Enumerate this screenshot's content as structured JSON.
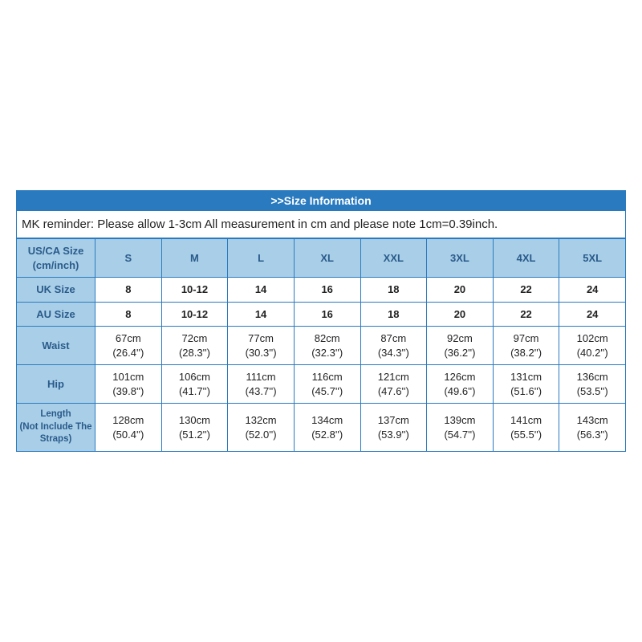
{
  "title": ">>Size Information",
  "reminder": "MK reminder: Please allow 1-3cm All measurement in cm and please note 1cm=0.39inch.",
  "colors": {
    "header_bg": "#2a7abf",
    "header_text": "#ffffff",
    "row_head_bg": "#a9cfe8",
    "row_head_text": "#2a5a8a",
    "border": "#2a7abf",
    "cell_bg": "#ffffff",
    "text": "#222222"
  },
  "columns_header_label": "US/CA Size (cm/inch)",
  "sizes": [
    "S",
    "M",
    "L",
    "XL",
    "XXL",
    "3XL",
    "4XL",
    "5XL"
  ],
  "uk_label": "UK Size",
  "uk": [
    "8",
    "10-12",
    "14",
    "16",
    "18",
    "20",
    "22",
    "24"
  ],
  "au_label": "AU Size",
  "au": [
    "8",
    "10-12",
    "14",
    "16",
    "18",
    "20",
    "22",
    "24"
  ],
  "measurements": [
    {
      "label": "Waist",
      "cm": [
        "67cm",
        "72cm",
        "77cm",
        "82cm",
        "87cm",
        "92cm",
        "97cm",
        "102cm"
      ],
      "in": [
        "(26.4'')",
        "(28.3'')",
        "(30.3'')",
        "(32.3'')",
        "(34.3'')",
        "(36.2'')",
        "(38.2'')",
        "(40.2'')"
      ]
    },
    {
      "label": "Hip",
      "cm": [
        "101cm",
        "106cm",
        "111cm",
        "116cm",
        "121cm",
        "126cm",
        "131cm",
        "136cm"
      ],
      "in": [
        "(39.8'')",
        "(41.7'')",
        "(43.7'')",
        "(45.7'')",
        "(47.6'')",
        "(49.6'')",
        "(51.6'')",
        "(53.5'')"
      ]
    },
    {
      "label": "Length\n(Not Include The Straps)",
      "cm": [
        "128cm",
        "130cm",
        "132cm",
        "134cm",
        "137cm",
        "139cm",
        "141cm",
        "143cm"
      ],
      "in": [
        "(50.4'')",
        "(51.2'')",
        "(52.0'')",
        "(52.8'')",
        "(53.9'')",
        "(54.7'')",
        "(55.5'')",
        "(56.3'')"
      ]
    }
  ]
}
